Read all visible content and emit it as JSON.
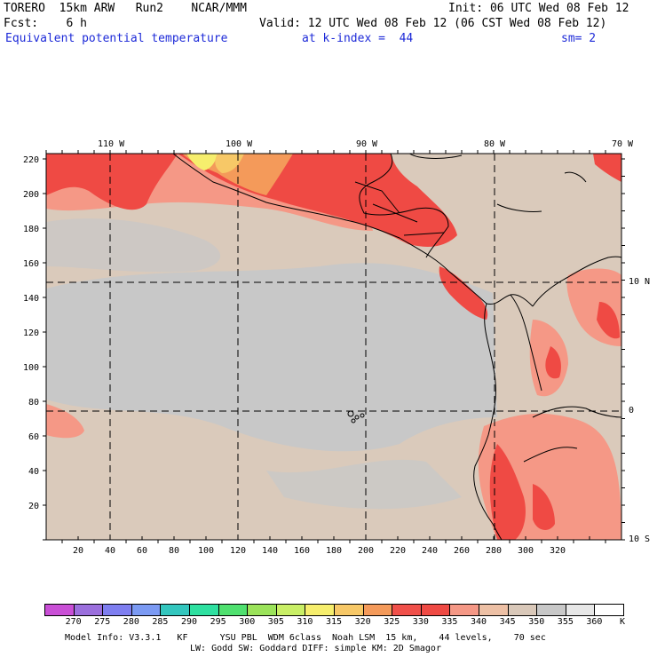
{
  "header": {
    "model_line": "TORERO  15km ARW   Run2    NCAR/MMM",
    "init_line": "Init: 06 UTC Wed 08 Feb 12",
    "fcst_line": "Fcst:    6 h",
    "valid_line": "Valid: 12 UTC Wed 08 Feb 12 (06 CST Wed 08 Feb 12)",
    "field_line": "Equivalent potential temperature",
    "level_line": "at k-index =  44",
    "smooth_line": "sm= 2"
  },
  "map": {
    "top_lon_labels": [
      "110 W",
      "100 W",
      "90 W",
      "80 W",
      "70 W"
    ],
    "right_lat_labels": [
      "10 N",
      "0",
      "10 S"
    ],
    "left_y_ticks": [
      "220",
      "200",
      "180",
      "160",
      "140",
      "120",
      "100",
      "80",
      "60",
      "40",
      "20"
    ],
    "bottom_x_ticks": [
      "20",
      "40",
      "60",
      "80",
      "100",
      "120",
      "140",
      "160",
      "180",
      "200",
      "220",
      "240",
      "260",
      "280",
      "300",
      "320"
    ],
    "background_color": "#dacabb"
  },
  "colorbar": {
    "labels": [
      "270",
      "275",
      "280",
      "285",
      "290",
      "295",
      "300",
      "305",
      "310",
      "315",
      "320",
      "325",
      "330",
      "335",
      "340",
      "345",
      "350",
      "355",
      "360"
    ],
    "unit": "K",
    "colors": [
      "#c94fd6",
      "#9b6fdd",
      "#7e7ef0",
      "#7b9af3",
      "#33c6be",
      "#2ee0a0",
      "#4fe06f",
      "#9be35a",
      "#c9ef66",
      "#f6ee6d",
      "#f7c867",
      "#f49a5a",
      "#f0504a",
      "#ef4a44",
      "#f59886",
      "#edc0a5",
      "#d9c8b9",
      "#c8c8c8",
      "#e7e7e7",
      "#ffffff"
    ]
  },
  "footer": {
    "line1": "Model Info: V3.3.1   KF      YSU PBL  WDM 6class  Noah LSM  15 km,    44 levels,    70 sec",
    "line2": "LW: Godd SW: Goddard DIFF: simple KM: 2D Smagor"
  }
}
